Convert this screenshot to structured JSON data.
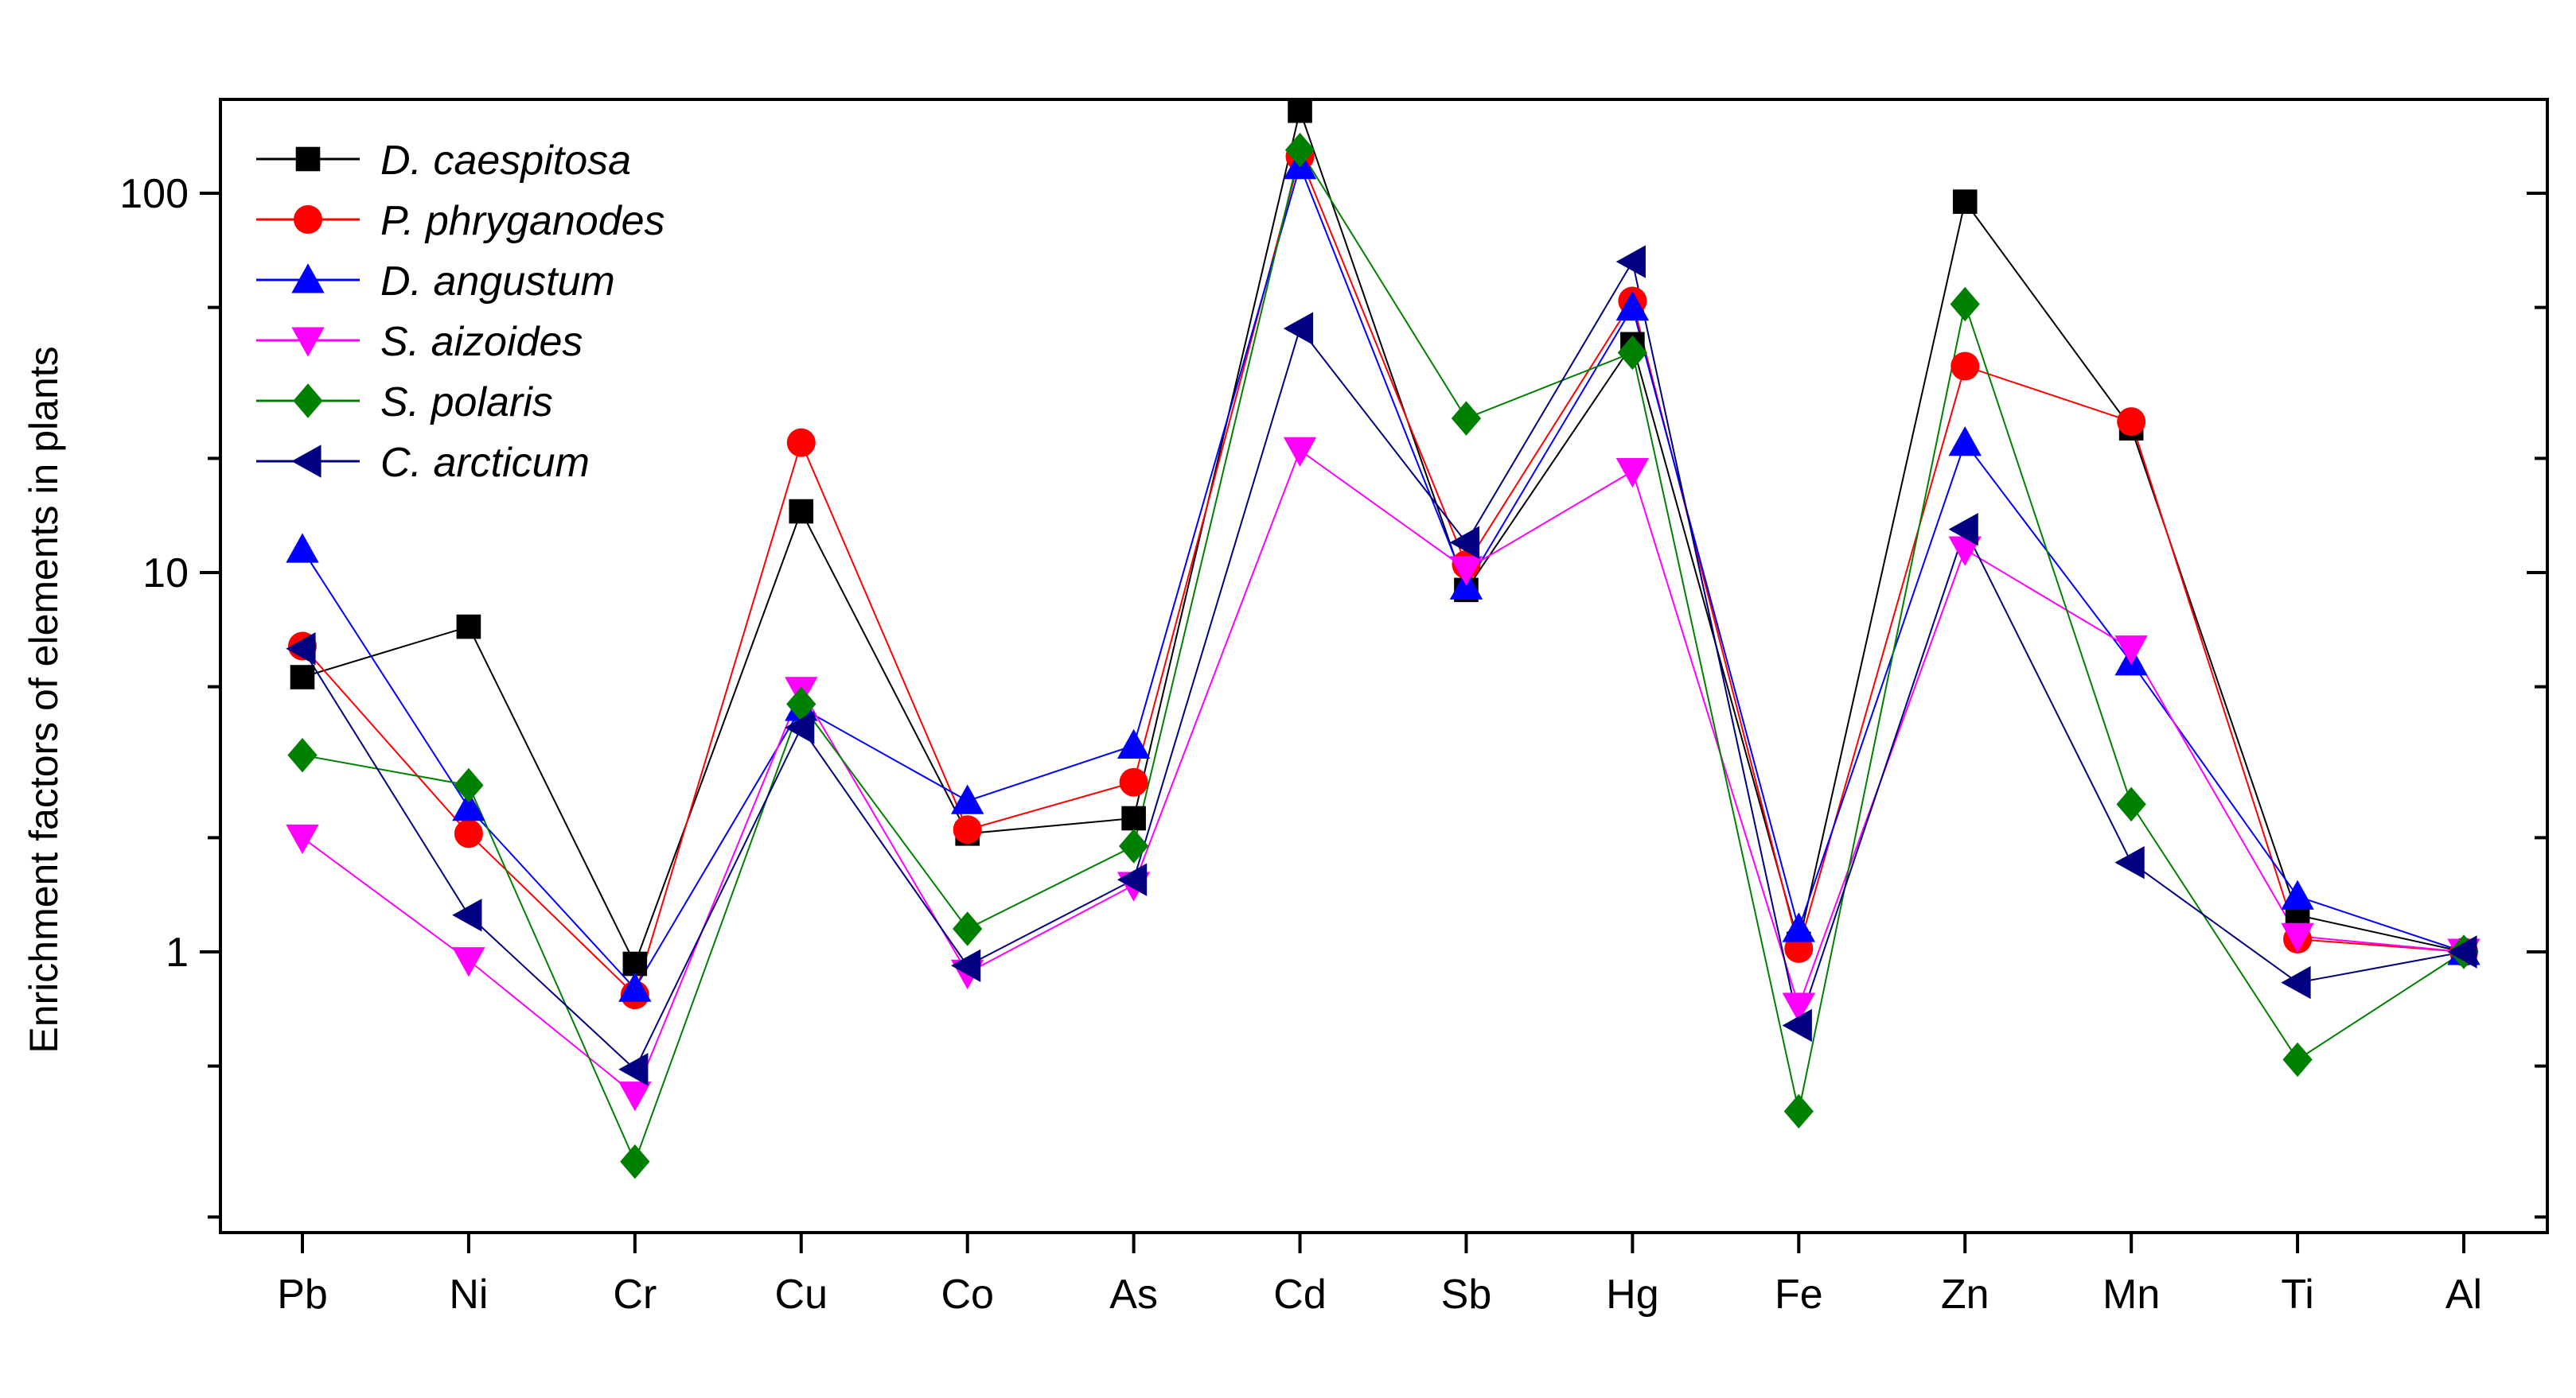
{
  "chart_data": {
    "type": "line",
    "title": "",
    "xlabel": "",
    "ylabel": "Enrichment factors of elements in plants",
    "yscale": "log",
    "ylim": [
      0.2,
      180
    ],
    "ytick_labels": [
      "1",
      "10",
      "100"
    ],
    "ytick_values": [
      1,
      10,
      100
    ],
    "grid": false,
    "legend_position": "top-left",
    "categories": [
      "Pb",
      "Ni",
      "Cr",
      "Cu",
      "Co",
      "As",
      "Cd",
      "Sb",
      "Hg",
      "Fe",
      "Zn",
      "Mn",
      "Ti",
      "Al"
    ],
    "series": [
      {
        "name": "D. caespitosa",
        "color": "#000000",
        "marker": "square",
        "values": [
          5.3,
          7.2,
          0.93,
          14.5,
          2.05,
          2.25,
          165,
          9.0,
          40,
          1.05,
          95,
          24,
          1.25,
          1.0
        ]
      },
      {
        "name": "P. phryganodes",
        "color": "#ff0000",
        "marker": "circle",
        "values": [
          6.4,
          2.05,
          0.77,
          22,
          2.1,
          2.8,
          125,
          10.5,
          52,
          1.02,
          35,
          25,
          1.08,
          1.0
        ]
      },
      {
        "name": "D. angustum",
        "color": "#0000ff",
        "marker": "triangle-up",
        "values": [
          11.5,
          2.4,
          0.8,
          4.4,
          2.5,
          3.5,
          118,
          9.2,
          50,
          1.15,
          22,
          5.8,
          1.4,
          1.0
        ]
      },
      {
        "name": "S. aizoides",
        "color": "#ff00ff",
        "marker": "triangle-down",
        "values": [
          2.0,
          0.95,
          0.42,
          4.9,
          0.88,
          1.5,
          21,
          10.2,
          18.5,
          0.72,
          11.5,
          6.3,
          1.1,
          1.0
        ]
      },
      {
        "name": "S. polaris",
        "color": "#008000",
        "marker": "diamond",
        "values": [
          3.3,
          2.75,
          0.28,
          4.5,
          1.15,
          1.9,
          130,
          25.5,
          38,
          0.38,
          51,
          2.45,
          0.52,
          1.0
        ]
      },
      {
        "name": "C. arcticum",
        "color": "#000080",
        "marker": "triangle-left",
        "values": [
          6.3,
          1.25,
          0.49,
          3.9,
          0.92,
          1.55,
          44,
          12,
          66,
          0.64,
          13,
          1.72,
          0.83,
          1.0
        ]
      }
    ]
  }
}
